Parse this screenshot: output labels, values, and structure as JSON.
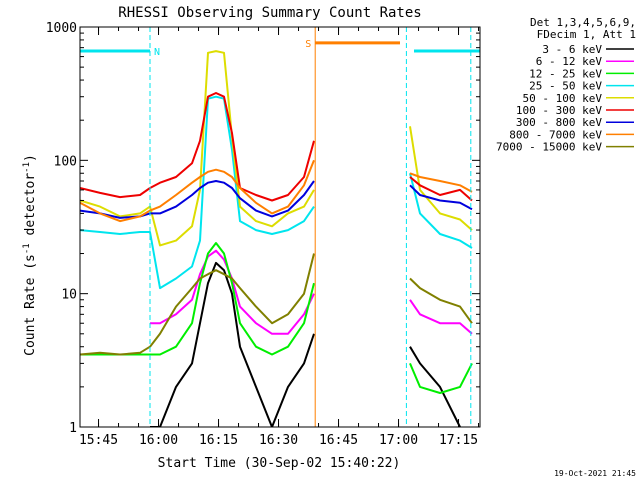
{
  "chart_data": {
    "type": "line",
    "title": "RHESSI Observing Summary Count Rates",
    "xlabel": "Start Time (30-Sep-02 15:40:22)",
    "ylabel": "Count Rate (s⁻¹ detector⁻¹)",
    "ylabel_parts": [
      "Count Rate (s",
      "-1",
      " detector",
      "-1",
      ")"
    ],
    "x_unit": "minutes since 15:40:22 UT",
    "xlim": [
      0,
      100
    ],
    "yscale": "log",
    "ylim": [
      1,
      1000
    ],
    "y_ticks": [
      {
        "value": 1,
        "label": "1"
      },
      {
        "value": 10,
        "label": "10"
      },
      {
        "value": 100,
        "label": "100"
      },
      {
        "value": 1000,
        "label": "1000"
      }
    ],
    "x_ticks": [
      {
        "value": 4.633,
        "label": "15:45"
      },
      {
        "value": 19.633,
        "label": "16:00"
      },
      {
        "value": 34.633,
        "label": "16:15"
      },
      {
        "value": 49.633,
        "label": "16:30"
      },
      {
        "value": 64.633,
        "label": "16:45"
      },
      {
        "value": 79.633,
        "label": "17:00"
      },
      {
        "value": 94.633,
        "label": "17:15"
      }
    ],
    "legend_header": [
      "Det 1,3,4,5,6,9,",
      "FDecim 1, Att 1"
    ],
    "legend_position": "right",
    "timestamp": "19-Oct-2021 21:45",
    "annotations": [
      {
        "type": "bar",
        "label": "N",
        "x0": 0,
        "x1": 17.5,
        "y": 660,
        "color": "#00e5ee"
      },
      {
        "type": "bar",
        "label": "S",
        "x0": 58.8,
        "x1": 80,
        "y": 760,
        "color": "#ff7f00"
      },
      {
        "type": "bar",
        "label": "",
        "x0": 83.5,
        "x1": 100,
        "y": 660,
        "color": "#00e5ee"
      },
      {
        "type": "vline",
        "x": 0,
        "color": "#00e5ee",
        "style": "solid"
      },
      {
        "type": "vline",
        "x": 17.5,
        "color": "#00e5ee",
        "style": "dashed"
      },
      {
        "type": "vline",
        "x": 58.8,
        "color": "#ff7f00",
        "style": "solid"
      },
      {
        "type": "vline",
        "x": 81.6,
        "color": "#00e5ee",
        "style": "dashed"
      },
      {
        "type": "vline",
        "x": 97.7,
        "color": "#00e5ee",
        "style": "dashed"
      }
    ],
    "data_gaps": [
      [
        58.8,
        81.6
      ]
    ],
    "x": [
      0,
      5,
      10,
      15,
      17.5,
      20,
      24,
      28,
      30,
      32,
      34,
      36,
      38,
      40,
      44,
      48,
      52,
      56,
      58.5,
      82.5,
      85,
      90,
      95,
      98
    ],
    "series": [
      {
        "name": "3 - 6 keV",
        "color": "#000000",
        "values": [
          null,
          null,
          null,
          null,
          1,
          1,
          2,
          3,
          6,
          12,
          17,
          15,
          10,
          4,
          2,
          1,
          2,
          3,
          5,
          4,
          3,
          2,
          1,
          null
        ]
      },
      {
        "name": "6 - 12 keV",
        "color": "#ff00ff",
        "values": [
          null,
          null,
          null,
          null,
          6,
          6,
          7,
          9,
          14,
          19,
          21,
          18,
          13,
          8,
          6,
          5,
          5,
          7,
          10,
          9,
          7,
          6,
          6,
          5
        ]
      },
      {
        "name": "12 - 25 keV",
        "color": "#00ee00",
        "values": [
          3.5,
          3.5,
          3.5,
          3.5,
          3.5,
          3.5,
          4,
          6,
          12,
          20,
          24,
          20,
          12,
          6,
          4,
          3.5,
          4,
          6,
          12,
          3,
          2,
          1.8,
          2,
          3
        ]
      },
      {
        "name": "25 - 50 keV",
        "color": "#00e5ee",
        "values": [
          30,
          29,
          28,
          29,
          29,
          11,
          13,
          16,
          25,
          290,
          300,
          290,
          120,
          35,
          30,
          28,
          30,
          35,
          45,
          80,
          40,
          28,
          25,
          22
        ]
      },
      {
        "name": "50 - 100 keV",
        "color": "#dddd00",
        "values": [
          50,
          45,
          38,
          40,
          45,
          23,
          25,
          32,
          60,
          640,
          660,
          640,
          150,
          45,
          35,
          32,
          40,
          45,
          60,
          180,
          60,
          40,
          36,
          30
        ]
      },
      {
        "name": "100 - 300 keV",
        "color": "#ee0000",
        "values": [
          62,
          57,
          53,
          55,
          62,
          68,
          75,
          95,
          140,
          300,
          320,
          300,
          160,
          62,
          55,
          50,
          55,
          75,
          140,
          75,
          65,
          55,
          60,
          50
        ]
      },
      {
        "name": "300 - 800 keV",
        "color": "#0000dd",
        "values": [
          42,
          40,
          37,
          38,
          40,
          40,
          45,
          55,
          62,
          68,
          70,
          68,
          62,
          52,
          42,
          38,
          42,
          55,
          70,
          65,
          55,
          50,
          48,
          43
        ]
      },
      {
        "name": "800 - 7000 keV",
        "color": "#ff7f00",
        "values": [
          48,
          40,
          35,
          38,
          42,
          45,
          55,
          68,
          75,
          82,
          85,
          82,
          75,
          62,
          48,
          40,
          45,
          65,
          100,
          80,
          75,
          70,
          65,
          58
        ]
      },
      {
        "name": "7000 - 15000 keV",
        "color": "#808000",
        "values": [
          3.5,
          3.6,
          3.5,
          3.6,
          4,
          5,
          8,
          11,
          13,
          14,
          15,
          14,
          13,
          11,
          8,
          6,
          7,
          10,
          20,
          13,
          11,
          9,
          8,
          6
        ]
      }
    ]
  }
}
